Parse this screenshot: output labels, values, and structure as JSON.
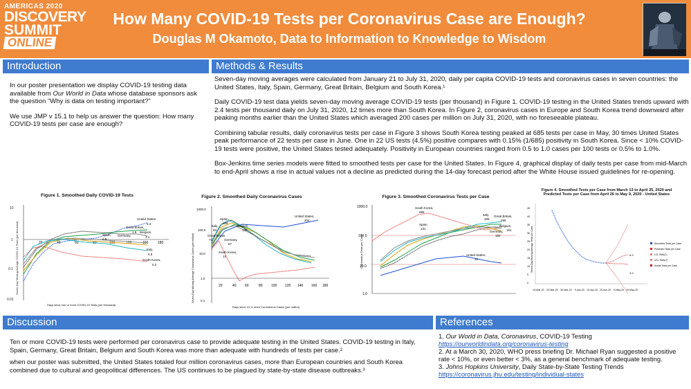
{
  "header": {
    "logo_year": "AMERICAS 2020",
    "logo_line1": "DISCOVERY",
    "logo_line2": "SUMMIT",
    "logo_line3": "ONLINE",
    "title": "How Many COVID-19 Tests per Coronavirus Case are Enough?",
    "subtitle": "Douglas M Okamoto, Data to Information to Knowledge to Wisdom",
    "accent_color": "#f08c3c",
    "bar_color": "#3f7bcf"
  },
  "introduction": {
    "heading": "Introduction",
    "p1a": "In our poster presentation we display COVID-19  testing data available from ",
    "p1_em": "Our World in Data",
    "p1b": " whose database sponsors ask the question “Why is data on testing important?”",
    "p2": "We use JMP v 15.1 to help us answer the question: How many COVID-19 tests per case are enough?"
  },
  "methods": {
    "heading": "Methods & Results",
    "p1": "Seven-day moving averages were calculated from January 21 to July 31, 2020, daily per capita COVID-19  tests and coronavirus cases in seven countries: the United States, Italy, Spain, Germany, Great Britain, Belgium and South Korea.¹",
    "p2": "Daily COVID-19  test data yields seven-day moving average COVID-19 tests (per thousand) in Figure 1. COVID-19 testing in the United States trends upward with 2.4 tests per thousand daily on July 31, 2020, 12 times more than South Korea. In Figure 2, coronavirus cases in Europe and South Korea trend downward after peaking months earlier than the United States which averaged 200 cases per million on July 31, 2020, with no foreseeable plateau.",
    "p3": "Combining tabular results, daily coronavirus tests per case in Figure 3 shows South Korea testing peaked at 685 tests per case in May, 30 times United States peak performance of 22 tests per case in June. One in 22 US tests (4.5%) positive compares with  0.15% (1/685) positivity in South Korea. Since < 10% COVID-19 tests were positive, the United States tested adequately. Positivity in European countries ranged from 0.5 to 1.0 cases per 100 tests or 0.5% to 1.0%.",
    "p4": "Box-Jenkins time series models were fitted to smoothed tests per case for the United States. In Figure 4, graphical display of daily tests per case from mid-March to end-April shows a rise in actual values not a decline as predicted during the 14-day forecast period after the White House issued guidelines for re-opening."
  },
  "figures": {
    "f1": {
      "caption": "Figure 1. Smoothed Daily COVID-19 Tests",
      "ylabel": "Seven-Day Moving Average COVID-19 Tests (per thousand)",
      "xlabel": "Days since one or more COVID-19 Tests (per thousand)",
      "yticks": [
        "10",
        "1",
        "0.1",
        "0.01"
      ],
      "xticks": [
        "20",
        "40",
        "60",
        "80",
        "100",
        "120",
        "140",
        "160",
        "180"
      ],
      "labels": [
        "United States,",
        "2.4",
        "Great Britain,",
        "1.9",
        "Belgium,",
        "Spain,",
        "0.8",
        "Germany,",
        "1.1",
        "Italy,",
        "0.5",
        "South Korea,",
        "0.2"
      ]
    },
    "f2": {
      "caption": "Figure 2. Smoothed Daily Coronavirus Cases",
      "ylabel": "Seven-Day Moving Average Coronavirus Cases (per million)",
      "xlabel": "Days since 10 or more Coronavirus Cases (per million)",
      "yticks": [
        "1000.0",
        "100.0",
        "10.0",
        "1.0",
        "0.1"
      ],
      "xticks": [
        "20",
        "40",
        "60",
        "80",
        "100",
        "120",
        "140",
        "160",
        "180"
      ],
      "labels": [
        "Spain,",
        "169",
        "Italy,",
        "93",
        "Belgium,",
        "139",
        "United States,",
        "204",
        "Great Britain,",
        "71",
        "Germany,",
        "67",
        "South Korea,",
        "12"
      ]
    },
    "f3": {
      "caption": "Figure 3. Smoothed Coronavirus Tests per Case",
      "ylabel": "Coronavirus Tests per Case",
      "yticks": [
        "1000.0",
        "100.0",
        "10.0",
        "1.0"
      ],
      "labels": [
        "South Korea,",
        "685",
        "Spain,",
        "131",
        "Italy,",
        "265",
        "Great Britain,",
        "266",
        "Belgium,",
        "191",
        "Germany,",
        "182",
        "United States,",
        "22"
      ]
    },
    "f4": {
      "caption1": "Figure 4. Smoothed Tests per Case from  March 13 to April 25, 2020  and",
      "caption2": "Predicted Tests per Case from  April 26 to May 9, 2020 - United States",
      "ylabel": "Seven-Day Moving Average Tests per Case",
      "yticks": [
        "45",
        "40",
        "35",
        "30",
        "25",
        "20",
        "15",
        "10",
        "5",
        "0"
      ],
      "xticks": [
        "10-Mar-20",
        "20-Mar-20",
        "30-Mar-20",
        "9-Apr-20",
        "19-Apr-20",
        "29-Apr-20",
        "9-May-20",
        "19-May-20"
      ],
      "legend": [
        "Smoothed Tests per Case",
        "Predicted Tests per Case",
        "LCL SMA(7)",
        "UCL SMA(7)",
        "Actual Tests per Case"
      ],
      "end_high": "8.3",
      "end_low": "3.9"
    }
  },
  "discussion": {
    "heading": "Discussion",
    "p1": "Ten or more COVID-19 tests were performed per coronavirus case to provide adequate testing in the United States. COVID-19 testing in Italy, Spain, Germany, Great Britain, Belgium and South Korea was more than adequate with hundreds of tests per case.²",
    "p2": "when our poster was submitted, the United States totaled four million coronavirus cases, more than European countries and South Korea combined due to cultural and geopolitical differences. The US continues to be plagued by state-by-state disease outbreaks.³"
  },
  "references": {
    "heading": "References",
    "r1_num": "1. ",
    "r1_em": "Our World in Data, Coronavirus",
    "r1_rest": ", COVID-19 Testing",
    "r1_link": "https://ourworldindata.org/coronavirus-testing",
    "r2": "2. At a March 30, 2020, WHO press briefing Dr. Michael Ryan suggested a positive rate < 10%, or even better < 3%, as a general benchmark of adequate testing.",
    "r3_num": "3. ",
    "r3_em": "Johns Hopkins University",
    "r3_rest": ", Daily State-by-State Testing Trends",
    "r3_link": "https://coronavirus.jhu.edu/testing/individual-states"
  }
}
